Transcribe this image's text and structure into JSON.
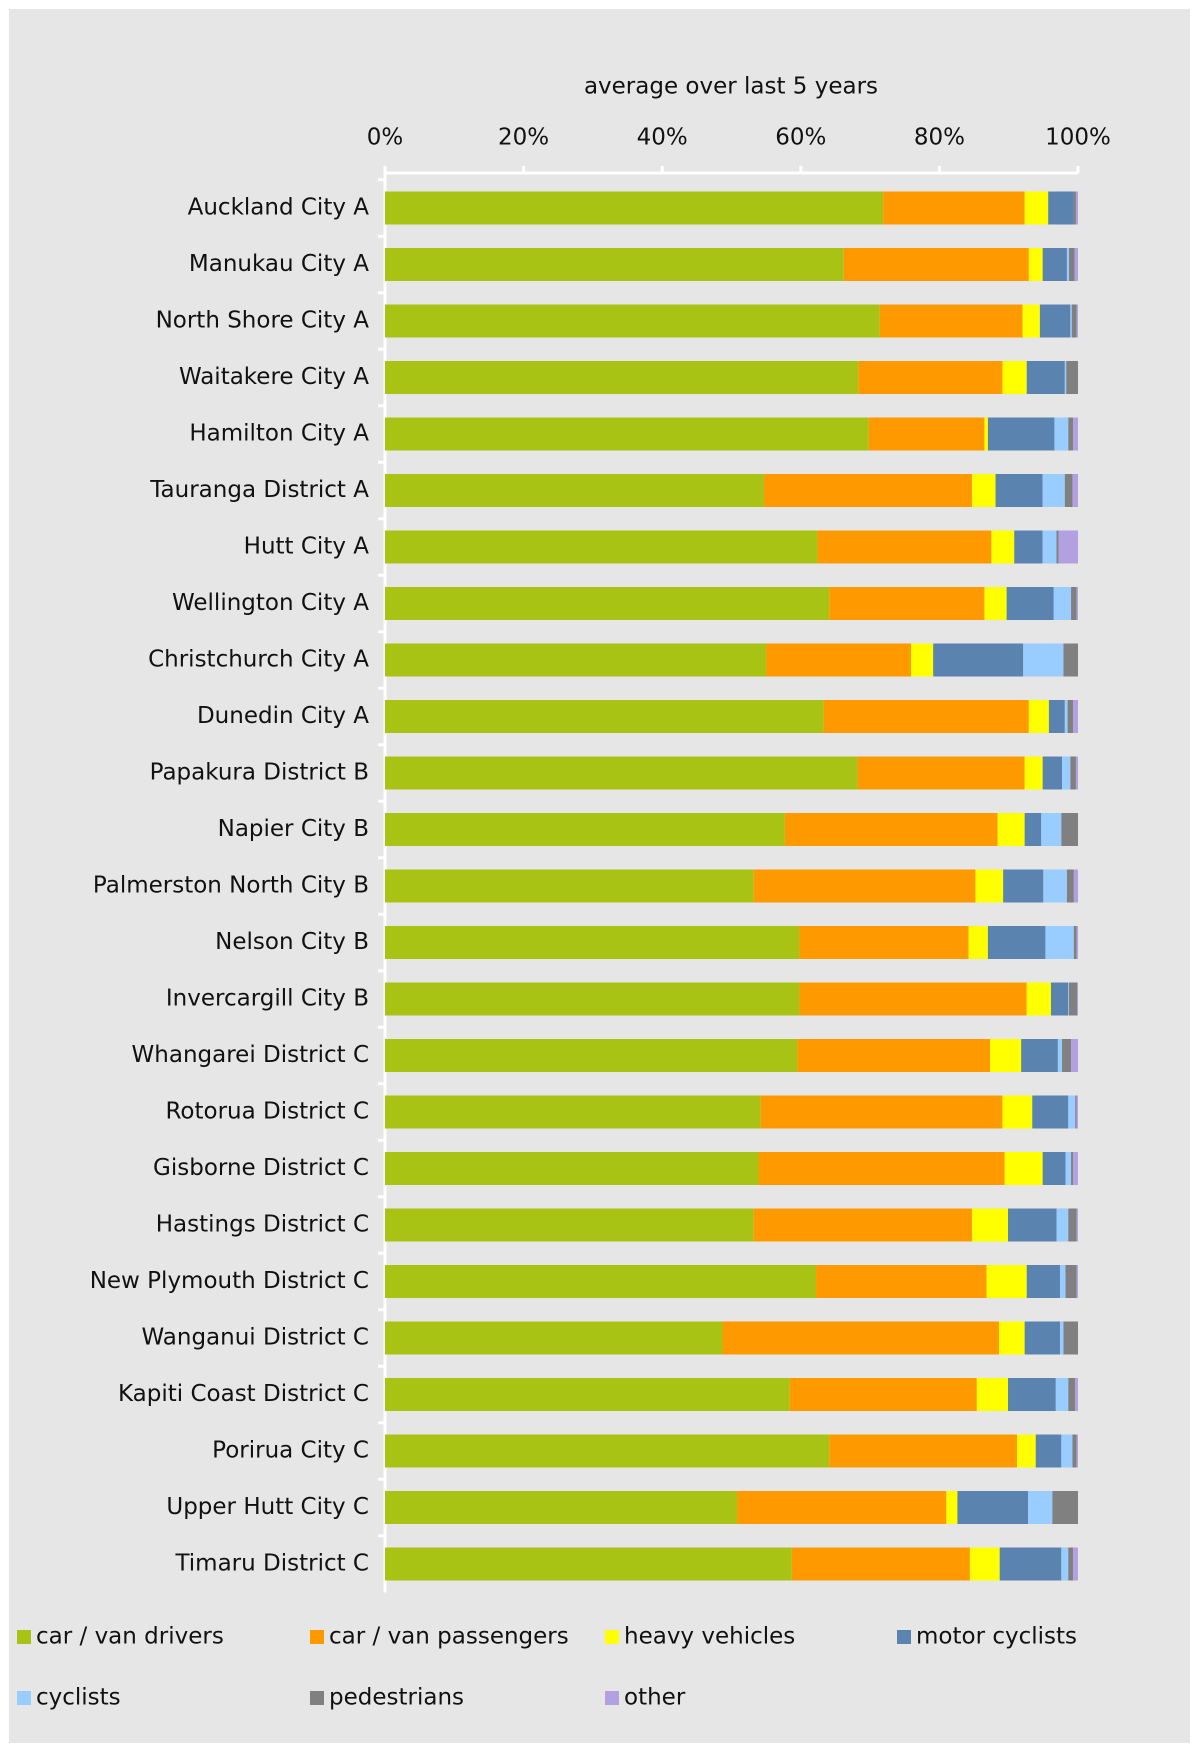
{
  "chart_data": {
    "type": "stacked-bar-horizontal",
    "x_axis_title": "average over last 5 years",
    "categories": [
      "Auckland City A",
      "Manukau City A",
      "North Shore City A",
      "Waitakere City A",
      "Hamilton City A",
      "Tauranga District A",
      "Hutt City A",
      "Wellington City A",
      "Christchurch City A",
      "Dunedin City A",
      "Papakura District B",
      "Napier City B",
      "Palmerston North City B",
      "Nelson City B",
      "Invercargill City B",
      "Whangarei District C",
      "Rotorua District C",
      "Gisborne District C",
      "Hastings District C",
      "New Plymouth District C",
      "Wanganui District C",
      "Kapiti Coast District C",
      "Porirua City C",
      "Upper Hutt City C",
      "Timaru District C"
    ],
    "series": [
      {
        "name": "car / van drivers",
        "color": "#a9c315",
        "values": [
          71.9,
          66.2,
          71.4,
          68.3,
          69.8,
          54.7,
          62.4,
          64.1,
          55.0,
          63.3,
          68.2,
          57.7,
          53.2,
          59.8,
          59.8,
          59.5,
          54.2,
          53.9,
          53.2,
          62.2,
          48.7,
          58.4,
          64.1,
          50.8,
          58.7
        ]
      },
      {
        "name": "car / van passengers",
        "color": "#ff9900",
        "values": [
          20.4,
          26.7,
          20.6,
          20.8,
          16.7,
          30.0,
          25.1,
          22.4,
          20.9,
          29.6,
          24.1,
          30.7,
          32.0,
          24.4,
          32.8,
          27.8,
          34.9,
          35.5,
          31.5,
          24.6,
          39.9,
          27.0,
          27.1,
          30.2,
          25.7
        ]
      },
      {
        "name": "heavy vehicles",
        "color": "#ffff00",
        "values": [
          3.4,
          2.0,
          2.5,
          3.5,
          0.5,
          3.4,
          3.3,
          3.2,
          3.2,
          2.9,
          2.6,
          3.9,
          4.0,
          2.8,
          3.5,
          4.5,
          4.3,
          5.5,
          5.2,
          5.8,
          3.7,
          4.5,
          2.7,
          1.6,
          4.3
        ]
      },
      {
        "name": "motor cyclists",
        "color": "#5b83b0",
        "values": [
          3.7,
          3.5,
          4.4,
          5.5,
          9.6,
          6.8,
          4.1,
          6.8,
          13.0,
          2.3,
          2.8,
          2.4,
          5.8,
          8.3,
          2.5,
          5.3,
          5.2,
          3.3,
          7.0,
          4.8,
          5.1,
          6.9,
          3.7,
          10.2,
          8.9
        ]
      },
      {
        "name": "cyclists",
        "color": "#99ccff",
        "values": [
          0,
          0.3,
          0.2,
          0.2,
          2.0,
          3.2,
          2.0,
          2.5,
          5.8,
          0.4,
          1.2,
          2.9,
          3.4,
          4.1,
          0.1,
          0.6,
          1.0,
          0.8,
          1.7,
          0.8,
          0.5,
          1.8,
          1.6,
          3.5,
          1.0
        ]
      },
      {
        "name": "pedestrians",
        "color": "#808080",
        "values": [
          0.3,
          0.8,
          0.7,
          1.7,
          0.7,
          1.1,
          0.3,
          0.8,
          2.1,
          0.8,
          0.8,
          2.4,
          1.0,
          0.4,
          1.2,
          1.3,
          0.2,
          0.3,
          1.2,
          1.6,
          2.1,
          1.0,
          0.6,
          3.7,
          0.7
        ]
      },
      {
        "name": "other",
        "color": "#b3a0e0",
        "values": [
          0.3,
          0.5,
          0.2,
          0,
          0.7,
          0.8,
          2.8,
          0.2,
          0,
          0.7,
          0.3,
          0,
          0.6,
          0.2,
          0.1,
          1.0,
          0.2,
          0.7,
          0.2,
          0.2,
          0,
          0.4,
          0.2,
          0,
          0.7
        ]
      }
    ],
    "xlim": [
      0,
      100
    ],
    "xticks": [
      {
        "value": 0,
        "label": "0%"
      },
      {
        "value": 20,
        "label": "20%"
      },
      {
        "value": 40,
        "label": "40%"
      },
      {
        "value": 60,
        "label": "60%"
      },
      {
        "value": 80,
        "label": "80%"
      },
      {
        "value": 100,
        "label": "100%"
      }
    ],
    "legend": "bottom"
  }
}
